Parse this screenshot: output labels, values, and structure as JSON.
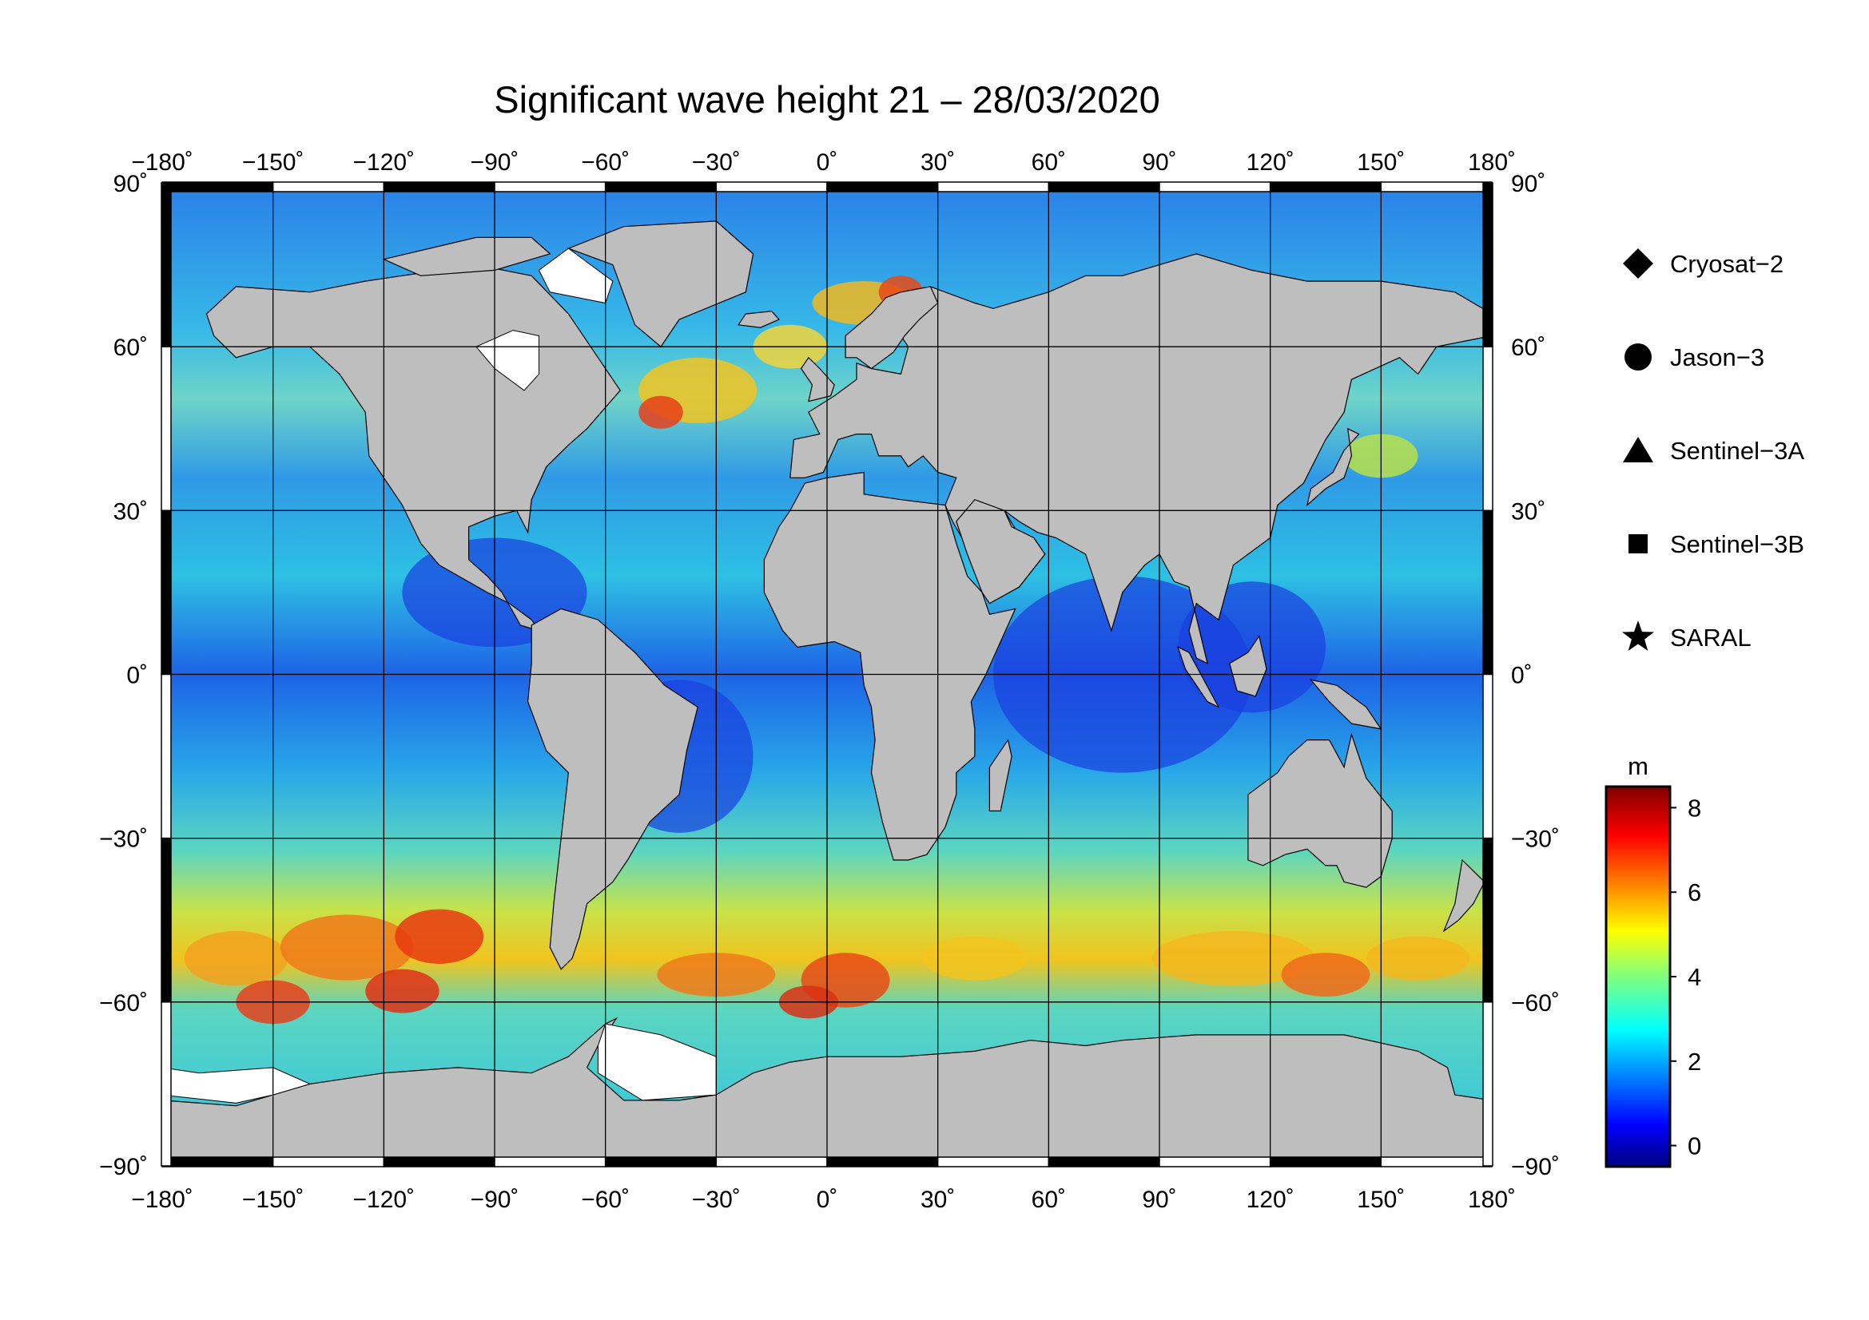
{
  "title": "Significant wave height 21 – 28/03/2020",
  "map": {
    "projection": "equirectangular",
    "lon_range": [
      -180,
      180
    ],
    "lat_range": [
      -90,
      90
    ],
    "lon_ticks": [
      -180,
      -150,
      -120,
      -90,
      -60,
      -30,
      0,
      30,
      60,
      90,
      120,
      150,
      180
    ],
    "lat_ticks": [
      90,
      60,
      30,
      0,
      -30,
      -60,
      -90
    ],
    "lon_tick_labels": [
      "−180˚",
      "−150˚",
      "−120˚",
      "−90˚",
      "−60˚",
      "−30˚",
      "0˚",
      "30˚",
      "60˚",
      "90˚",
      "120˚",
      "150˚",
      "180˚"
    ],
    "lat_tick_labels": [
      "90˚",
      "60˚",
      "30˚",
      "0˚",
      "−30˚",
      "−60˚",
      "−90˚"
    ],
    "land_color": "#bebebe",
    "ice_color": "#ffffff",
    "grid": true
  },
  "legend": {
    "items": [
      {
        "marker": "diamond",
        "label": "Cryosat−2"
      },
      {
        "marker": "circle",
        "label": "Jason−3"
      },
      {
        "marker": "triangle",
        "label": "Sentinel−3A"
      },
      {
        "marker": "square",
        "label": "Sentinel−3B"
      },
      {
        "marker": "star",
        "label": "SARAL"
      }
    ]
  },
  "colorbar": {
    "unit": "m",
    "range": [
      -0.5,
      8.5
    ],
    "ticks": [
      0,
      2,
      4,
      6,
      8
    ],
    "tick_labels": [
      "0",
      "2",
      "4",
      "6",
      "8"
    ],
    "colormap": "jet"
  }
}
